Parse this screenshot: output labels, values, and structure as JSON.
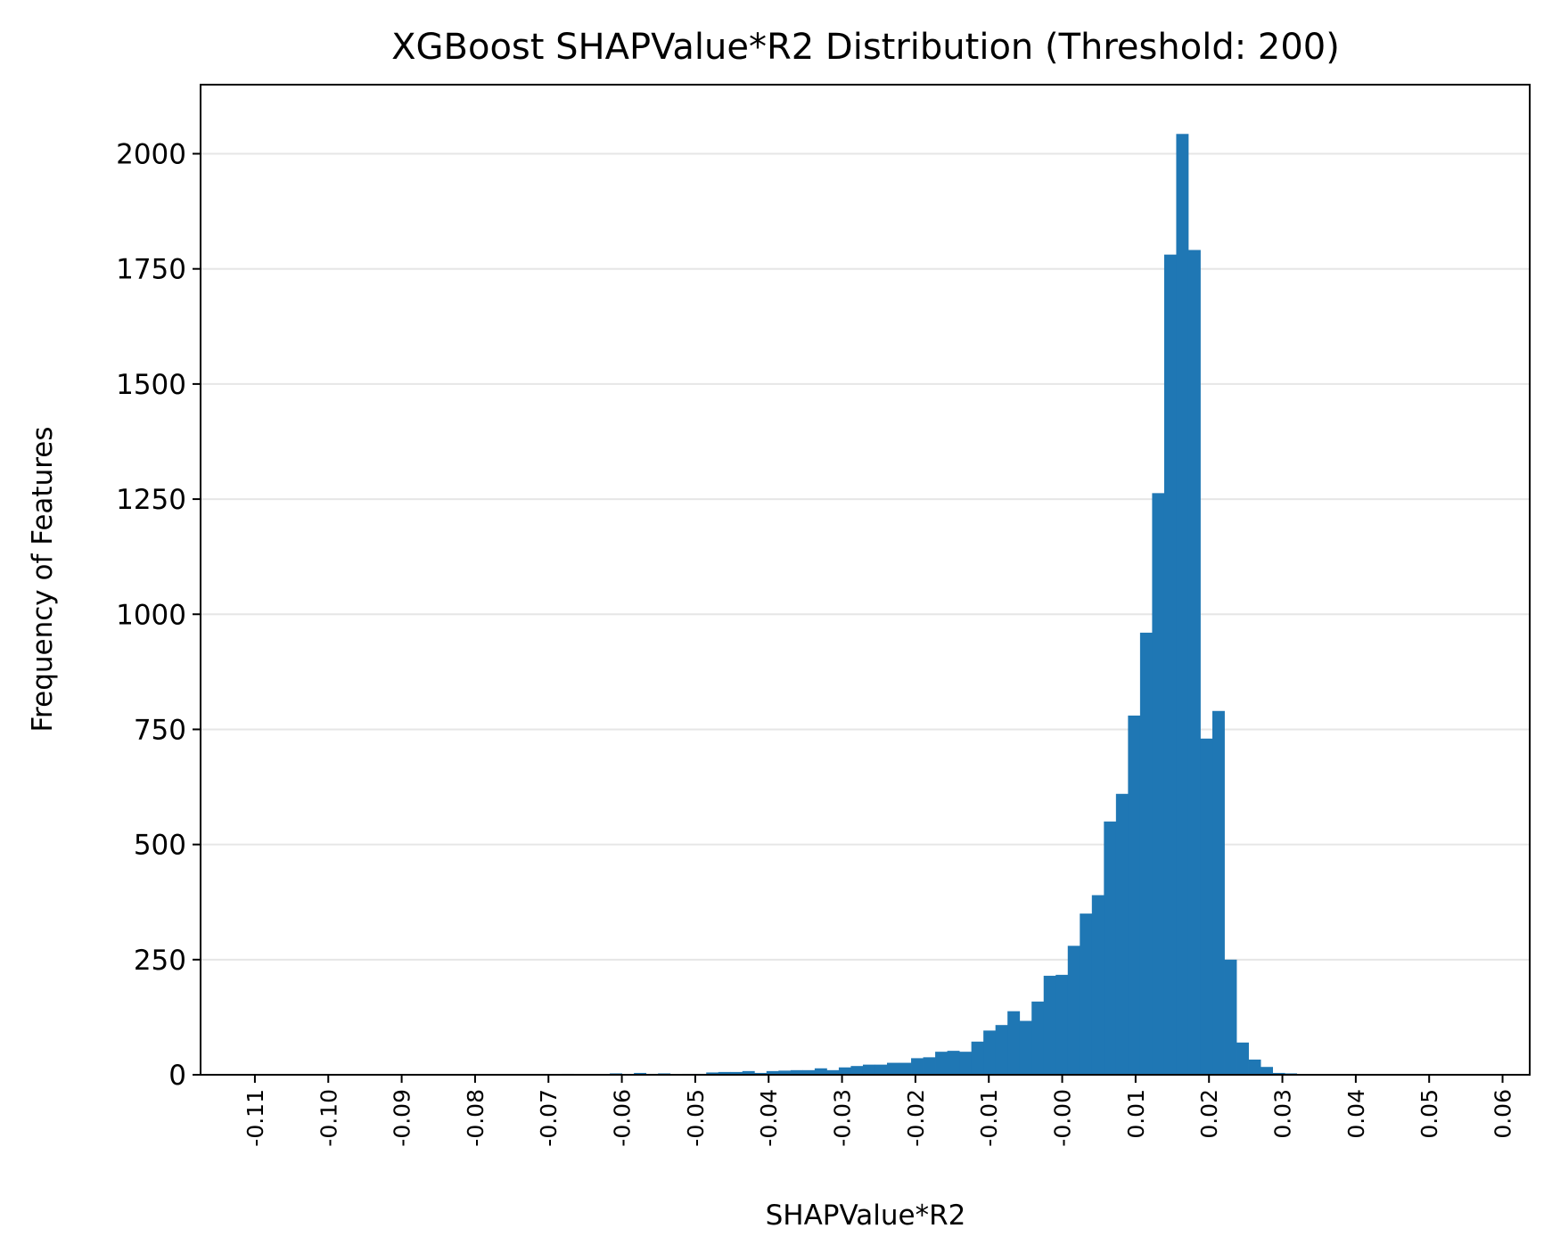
{
  "chart_data": {
    "type": "bar",
    "title": "XGBoost SHAPValue*R2 Distribution (Threshold: 200)",
    "xlabel": "SHAPValue*R2",
    "ylabel": "Frequency of Features",
    "xlim": [
      -0.1174,
      0.0637
    ],
    "ylim": [
      0,
      2150
    ],
    "grid": "horizontal",
    "x_ticks": [
      -0.11,
      -0.1,
      -0.09,
      -0.08,
      -0.07,
      -0.06,
      -0.05,
      -0.04,
      -0.03,
      -0.02,
      -0.01,
      0.0,
      0.01,
      0.02,
      0.03,
      0.04,
      0.05,
      0.06
    ],
    "x_tick_labels": [
      "-0.11",
      "-0.10",
      "-0.09",
      "-0.08",
      "-0.07",
      "-0.06",
      "-0.05",
      "-0.04",
      "-0.03",
      "-0.02",
      "-0.01",
      "-0.00",
      "0.01",
      "0.02",
      "0.03",
      "0.04",
      "0.05",
      "0.06"
    ],
    "y_ticks": [
      0,
      250,
      500,
      750,
      1000,
      1250,
      1500,
      1750,
      2000
    ],
    "y_tick_labels": [
      "0",
      "250",
      "500",
      "750",
      "1000",
      "1250",
      "1500",
      "1750",
      "2000"
    ],
    "bin_start": -0.1109,
    "bin_width": 0.001642,
    "counts": [
      1,
      0,
      0,
      0,
      0,
      0,
      0,
      0,
      0,
      0,
      0,
      0,
      0,
      0,
      0,
      0,
      0,
      0,
      0,
      0,
      0,
      0,
      0,
      0,
      1,
      0,
      2,
      0,
      1,
      0,
      3,
      1,
      4,
      2,
      3,
      1,
      2,
      2,
      5,
      6,
      6,
      8,
      4,
      8,
      9,
      10,
      10,
      14,
      10,
      16,
      19,
      22,
      22,
      26,
      26,
      36,
      38,
      50,
      52,
      50,
      72,
      96,
      108,
      138,
      117,
      159,
      215,
      217,
      280,
      350,
      390,
      550,
      610,
      780,
      960,
      1263,
      1781,
      2043,
      1791,
      730,
      790,
      250,
      70,
      33,
      17,
      4,
      3,
      0,
      1,
      0,
      0,
      1,
      0,
      0,
      0,
      0,
      0,
      0,
      0,
      0,
      0,
      0,
      1,
      0,
      0,
      0,
      0,
      0,
      0,
      0,
      0
    ],
    "bar_color": "#1f77b4"
  }
}
